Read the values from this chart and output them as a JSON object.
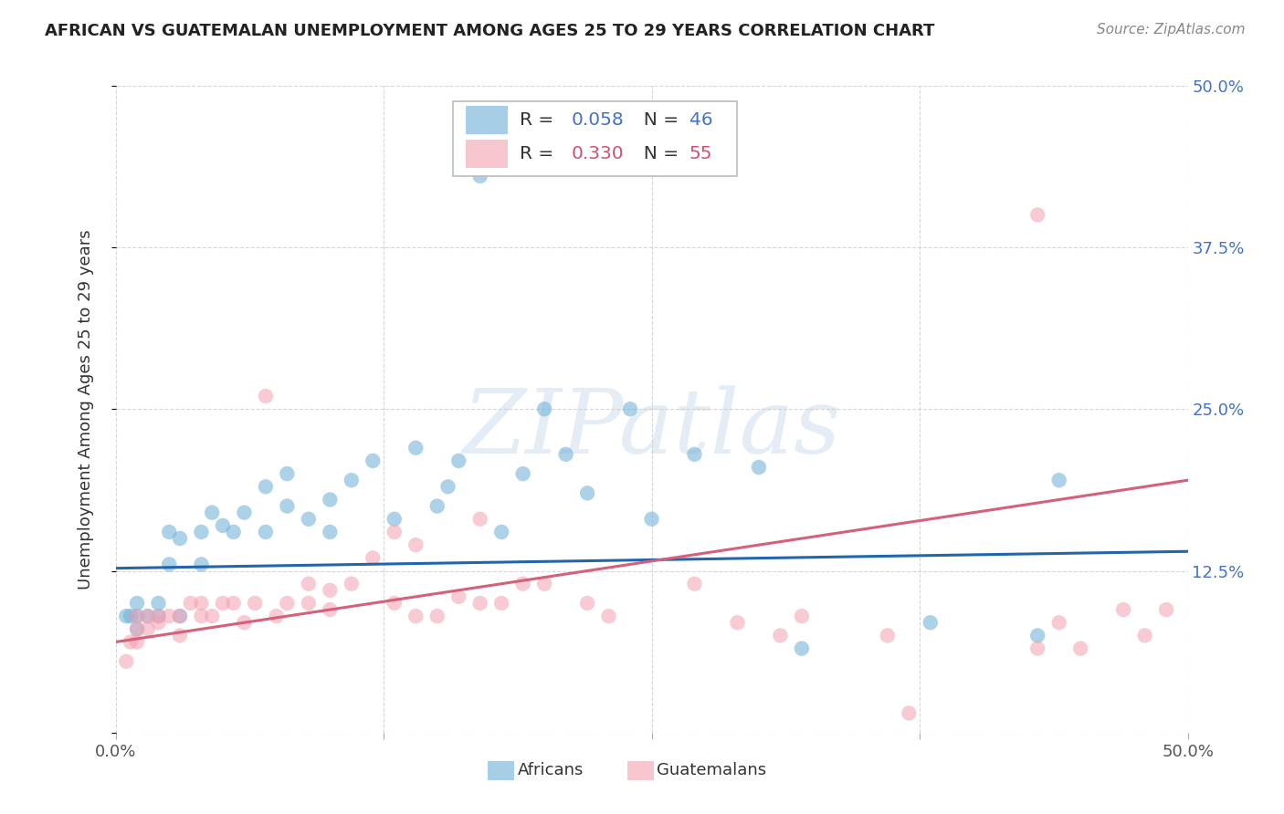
{
  "title": "AFRICAN VS GUATEMALAN UNEMPLOYMENT AMONG AGES 25 TO 29 YEARS CORRELATION CHART",
  "source": "Source: ZipAtlas.com",
  "ylabel": "Unemployment Among Ages 25 to 29 years",
  "xlim": [
    0.0,
    0.5
  ],
  "ylim": [
    0.0,
    0.5
  ],
  "background_color": "#ffffff",
  "grid_color": "#cccccc",
  "african_color": "#6baed6",
  "guatemalan_color": "#f4a0b0",
  "african_R": 0.058,
  "african_N": 46,
  "guatemalan_R": 0.33,
  "guatemalan_N": 55,
  "african_x": [
    0.005,
    0.007,
    0.01,
    0.01,
    0.01,
    0.015,
    0.02,
    0.02,
    0.025,
    0.025,
    0.03,
    0.03,
    0.04,
    0.04,
    0.045,
    0.05,
    0.055,
    0.06,
    0.07,
    0.07,
    0.08,
    0.08,
    0.09,
    0.1,
    0.1,
    0.11,
    0.12,
    0.13,
    0.14,
    0.15,
    0.155,
    0.16,
    0.17,
    0.18,
    0.19,
    0.2,
    0.21,
    0.22,
    0.24,
    0.25,
    0.27,
    0.3,
    0.32,
    0.38,
    0.43,
    0.44
  ],
  "african_y": [
    0.09,
    0.09,
    0.08,
    0.09,
    0.1,
    0.09,
    0.09,
    0.1,
    0.13,
    0.155,
    0.09,
    0.15,
    0.13,
    0.155,
    0.17,
    0.16,
    0.155,
    0.17,
    0.155,
    0.19,
    0.175,
    0.2,
    0.165,
    0.155,
    0.18,
    0.195,
    0.21,
    0.165,
    0.22,
    0.175,
    0.19,
    0.21,
    0.43,
    0.155,
    0.2,
    0.25,
    0.215,
    0.185,
    0.25,
    0.165,
    0.215,
    0.205,
    0.065,
    0.085,
    0.075,
    0.195
  ],
  "guatemalan_x": [
    0.005,
    0.007,
    0.01,
    0.01,
    0.01,
    0.015,
    0.015,
    0.02,
    0.02,
    0.025,
    0.03,
    0.03,
    0.035,
    0.04,
    0.04,
    0.045,
    0.05,
    0.055,
    0.06,
    0.065,
    0.07,
    0.075,
    0.08,
    0.09,
    0.09,
    0.1,
    0.1,
    0.11,
    0.12,
    0.13,
    0.13,
    0.14,
    0.14,
    0.15,
    0.16,
    0.17,
    0.17,
    0.18,
    0.19,
    0.2,
    0.22,
    0.23,
    0.27,
    0.29,
    0.31,
    0.32,
    0.36,
    0.37,
    0.43,
    0.43,
    0.44,
    0.45,
    0.47,
    0.48,
    0.49
  ],
  "guatemalan_y": [
    0.055,
    0.07,
    0.07,
    0.08,
    0.09,
    0.08,
    0.09,
    0.085,
    0.09,
    0.09,
    0.075,
    0.09,
    0.1,
    0.09,
    0.1,
    0.09,
    0.1,
    0.1,
    0.085,
    0.1,
    0.26,
    0.09,
    0.1,
    0.1,
    0.115,
    0.095,
    0.11,
    0.115,
    0.135,
    0.1,
    0.155,
    0.09,
    0.145,
    0.09,
    0.105,
    0.1,
    0.165,
    0.1,
    0.115,
    0.115,
    0.1,
    0.09,
    0.115,
    0.085,
    0.075,
    0.09,
    0.075,
    0.015,
    0.065,
    0.4,
    0.085,
    0.065,
    0.095,
    0.075,
    0.095
  ],
  "watermark": "ZIPatlas",
  "line_blue_start_x": 0.0,
  "line_blue_start_y": 0.127,
  "line_blue_end_x": 0.5,
  "line_blue_end_y": 0.14,
  "line_pink_start_x": 0.0,
  "line_pink_start_y": 0.07,
  "line_pink_end_x": 0.5,
  "line_pink_end_y": 0.195
}
